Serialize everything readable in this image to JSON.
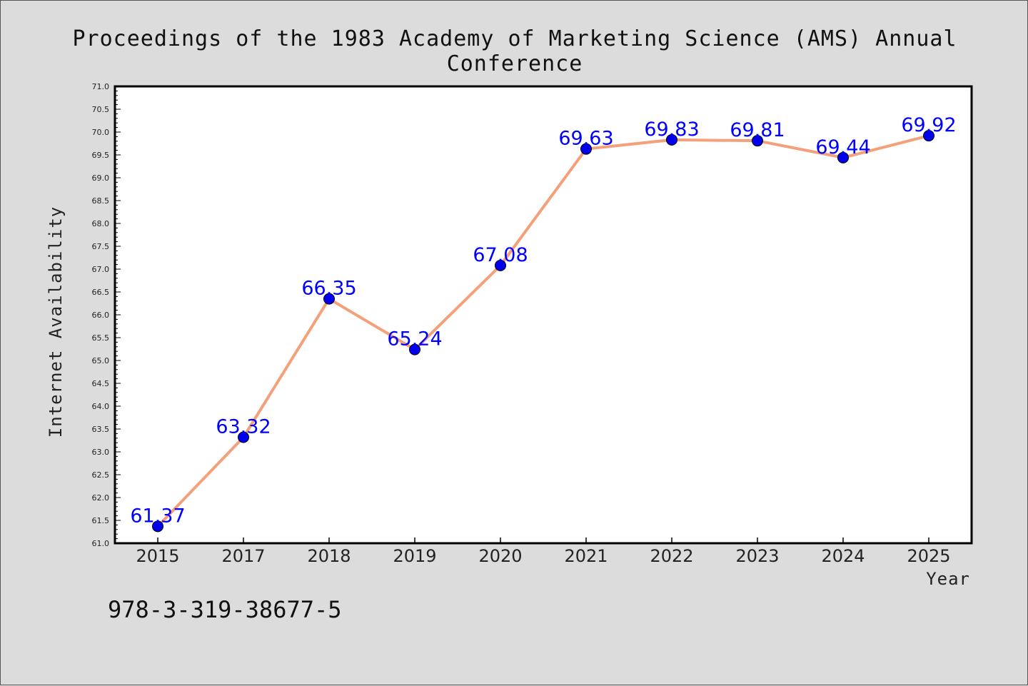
{
  "title": "Proceedings of the 1983 Academy of Marketing Science (AMS) Annual Conference",
  "footer_text": "978-3-319-38677-5",
  "chart_data": {
    "type": "line",
    "title": "Proceedings of the 1983 Academy of Marketing Science (AMS) Annual Conference",
    "xlabel": "Year",
    "ylabel": "Internet Availability",
    "categories": [
      "2015",
      "2017",
      "2018",
      "2019",
      "2020",
      "2021",
      "2022",
      "2023",
      "2024",
      "2025"
    ],
    "series": [
      {
        "values": [
          61.37,
          63.32,
          66.35,
          65.24,
          67.08,
          69.63,
          69.83,
          69.81,
          69.44,
          69.92
        ],
        "labels": [
          "61.37",
          "63.32",
          "66.35",
          "65.24",
          "67.08",
          "69.63",
          "69.83",
          "69.81",
          "69.44",
          "69.92"
        ],
        "line_color": "#f4a07a",
        "marker_color": "#0000ee"
      }
    ],
    "ylim": [
      61.0,
      71.0
    ],
    "yticks": [
      "61.0",
      "61.5",
      "62.0",
      "62.5",
      "63.0",
      "63.5",
      "64.0",
      "64.5",
      "65.0",
      "65.5",
      "66.0",
      "66.5",
      "67.0",
      "67.5",
      "68.0",
      "68.5",
      "69.0",
      "69.5",
      "70.0",
      "70.5",
      "71.0"
    ],
    "grid": false,
    "legend": "none",
    "label_color": "#0000ff",
    "background": "#dcdcdc",
    "plot_background": "#ffffff"
  }
}
